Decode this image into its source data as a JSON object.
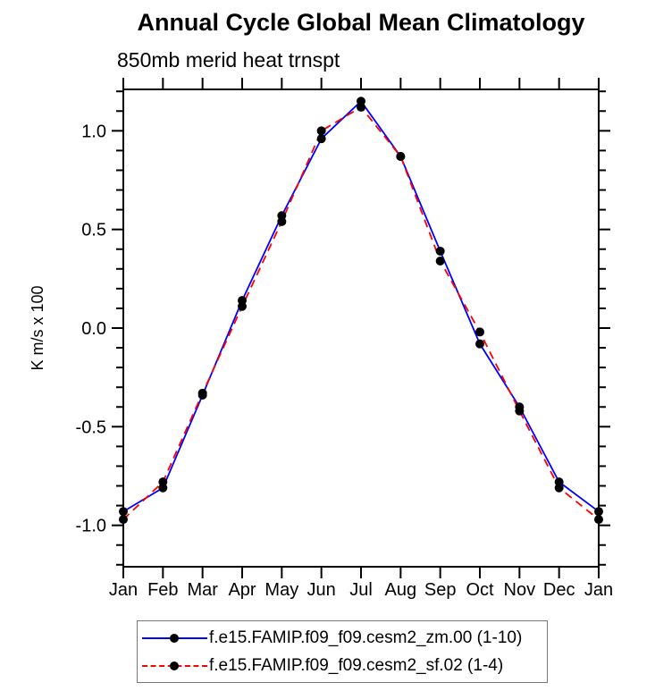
{
  "chart_data": {
    "type": "line",
    "title": "Annual Cycle Global Mean Climatology",
    "subtitle": "850mb merid heat trnspt",
    "ylabel": "K m/s x 100",
    "xlabel": "",
    "x_categories": [
      "Jan",
      "Feb",
      "Mar",
      "Apr",
      "May",
      "Jun",
      "Jul",
      "Aug",
      "Sep",
      "Oct",
      "Nov",
      "Dec",
      "Jan"
    ],
    "ylim": [
      -1.21,
      1.21
    ],
    "y_major_ticks": [
      1.0,
      0.5,
      0.0,
      -0.5,
      -1.0
    ],
    "y_major_labels": [
      "1.0",
      "0.5",
      "0.0",
      "-0.5",
      "-1.0"
    ],
    "y_minor_step": 0.1,
    "grid": "off",
    "legend_position": "bottom",
    "marker": "filled-circle",
    "marker_color": "#000000",
    "axis_color": "#000000",
    "series": [
      {
        "name": "f.e15.FAMIP.f09_f09.cesm2_zm.00 (1-10)",
        "color": "#0000ff",
        "style": "solid",
        "values": [
          -0.93,
          -0.81,
          -0.34,
          0.14,
          0.57,
          0.96,
          1.15,
          0.87,
          0.39,
          -0.08,
          -0.4,
          -0.78,
          -0.93
        ]
      },
      {
        "name": "f.e15.FAMIP.f09_f09.cesm2_sf.02 (1-4)",
        "color": "#ff0000",
        "style": "dashed",
        "values": [
          -0.97,
          -0.78,
          -0.33,
          0.11,
          0.54,
          1.0,
          1.12,
          0.87,
          0.34,
          -0.02,
          -0.42,
          -0.81,
          -0.97
        ]
      }
    ]
  }
}
